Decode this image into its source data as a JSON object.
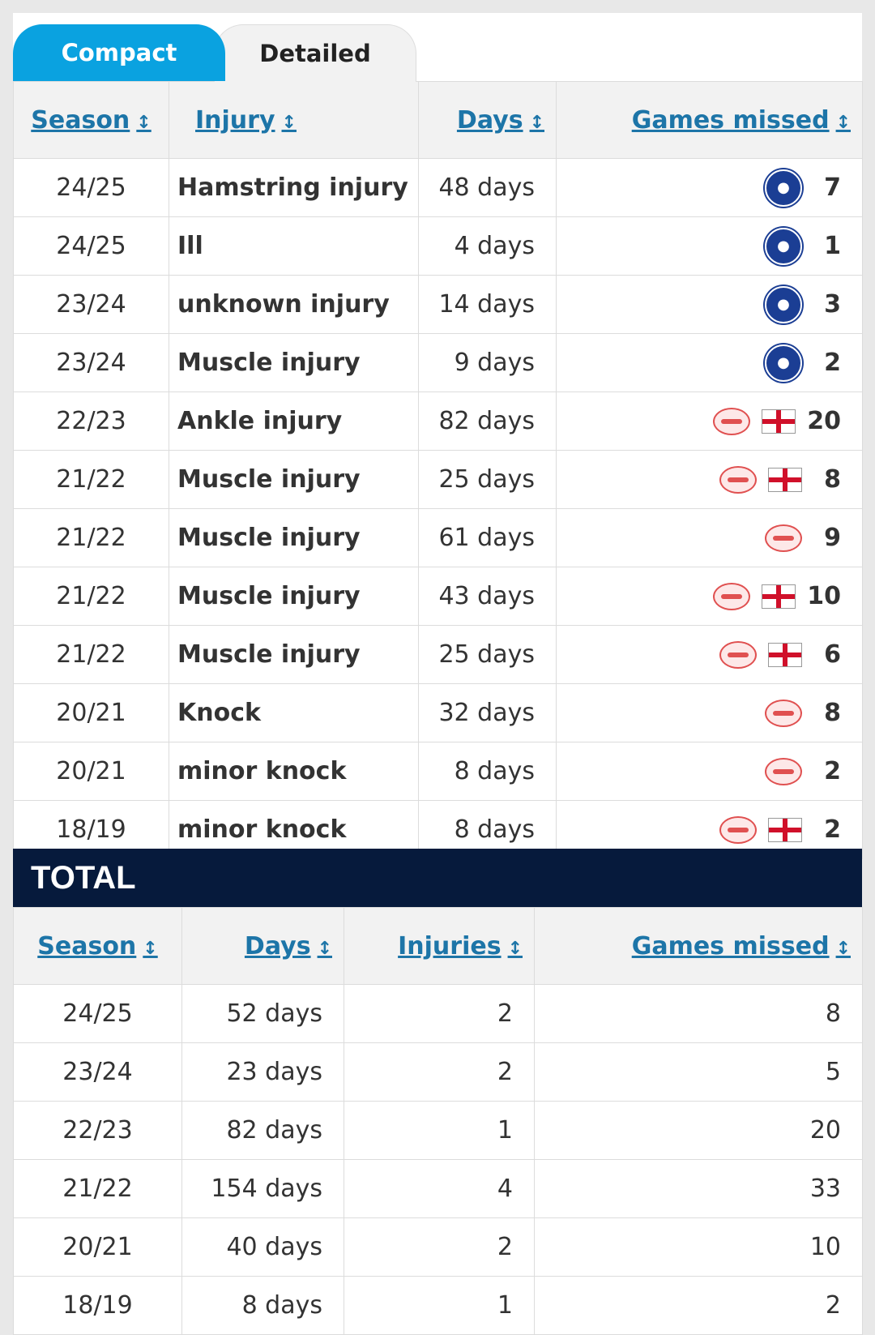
{
  "tabs": {
    "compact": "Compact",
    "detailed": "Detailed"
  },
  "injury_table": {
    "headers": {
      "season": "Season",
      "injury": "Injury",
      "days": "Days",
      "games_missed": "Games missed"
    },
    "sort_glyph": "↕",
    "rows": [
      {
        "season": "24/25",
        "injury": "Hamstring injury",
        "days": "48 days",
        "games": "7",
        "icons": [
          "chelsea"
        ]
      },
      {
        "season": "24/25",
        "injury": "Ill",
        "days": "4 days",
        "games": "1",
        "icons": [
          "chelsea"
        ]
      },
      {
        "season": "23/24",
        "injury": "unknown injury",
        "days": "14 days",
        "games": "3",
        "icons": [
          "chelsea"
        ]
      },
      {
        "season": "23/24",
        "injury": "Muscle injury",
        "days": "9 days",
        "games": "2",
        "icons": [
          "chelsea"
        ]
      },
      {
        "season": "22/23",
        "injury": "Ankle injury",
        "days": "82 days",
        "games": "20",
        "icons": [
          "psv",
          "england"
        ]
      },
      {
        "season": "21/22",
        "injury": "Muscle injury",
        "days": "25 days",
        "games": "8",
        "icons": [
          "psv",
          "england"
        ]
      },
      {
        "season": "21/22",
        "injury": "Muscle injury",
        "days": "61 days",
        "games": "9",
        "icons": [
          "psv"
        ]
      },
      {
        "season": "21/22",
        "injury": "Muscle injury",
        "days": "43 days",
        "games": "10",
        "icons": [
          "psv",
          "england"
        ]
      },
      {
        "season": "21/22",
        "injury": "Muscle injury",
        "days": "25 days",
        "games": "6",
        "icons": [
          "psv",
          "england"
        ]
      },
      {
        "season": "20/21",
        "injury": "Knock",
        "days": "32 days",
        "games": "8",
        "icons": [
          "psv"
        ]
      },
      {
        "season": "20/21",
        "injury": "minor knock",
        "days": "8 days",
        "games": "2",
        "icons": [
          "psv"
        ]
      },
      {
        "season": "18/19",
        "injury": "minor knock",
        "days": "8 days",
        "games": "2",
        "icons": [
          "psv",
          "england"
        ]
      }
    ]
  },
  "total": {
    "title": "TOTAL",
    "headers": {
      "season": "Season",
      "days": "Days",
      "injuries": "Injuries",
      "games_missed": "Games missed"
    },
    "rows": [
      {
        "season": "24/25",
        "days": "52 days",
        "injuries": "2",
        "games": "8"
      },
      {
        "season": "23/24",
        "days": "23 days",
        "injuries": "2",
        "games": "5"
      },
      {
        "season": "22/23",
        "days": "82 days",
        "injuries": "1",
        "games": "20"
      },
      {
        "season": "21/22",
        "days": "154 days",
        "injuries": "4",
        "games": "33"
      },
      {
        "season": "20/21",
        "days": "40 days",
        "injuries": "2",
        "games": "10"
      },
      {
        "season": "18/19",
        "days": "8 days",
        "injuries": "1",
        "games": "2"
      }
    ]
  },
  "colors": {
    "accent": "#0aa2e0",
    "link": "#1d75a8",
    "navy": "#061a3c"
  }
}
